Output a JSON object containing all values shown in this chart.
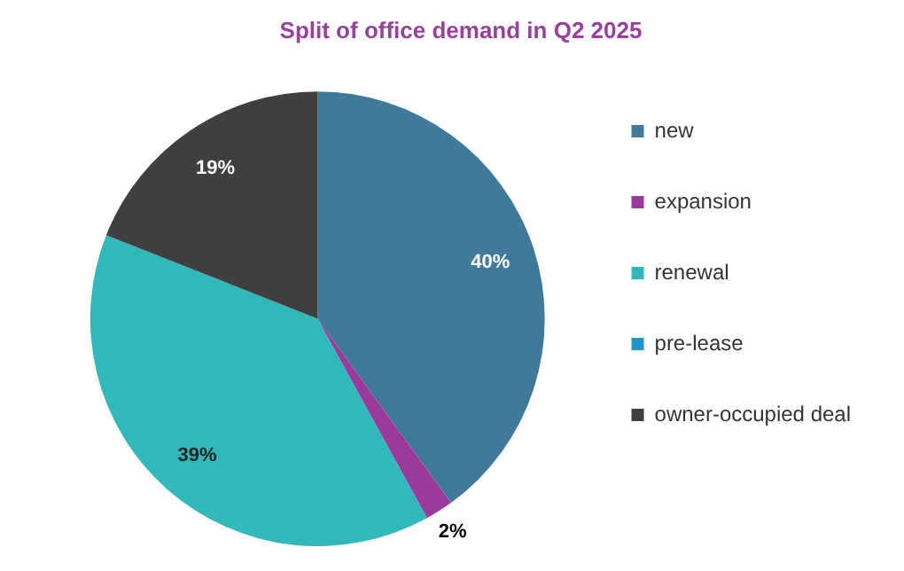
{
  "chart_data": {
    "type": "pie",
    "title": "Split of office demand in Q2 2025",
    "categories": [
      "new",
      "expansion",
      "renewal",
      "pre-lease",
      "owner-occupied deal"
    ],
    "values": [
      40,
      2,
      39,
      0,
      19
    ],
    "colors": [
      "#41799b",
      "#9c3a9c",
      "#30b8ba",
      "#1f95c6",
      "#3f3f3f"
    ],
    "value_labels": [
      "40%",
      "2%",
      "39%",
      null,
      "19%"
    ],
    "legend": "right"
  }
}
